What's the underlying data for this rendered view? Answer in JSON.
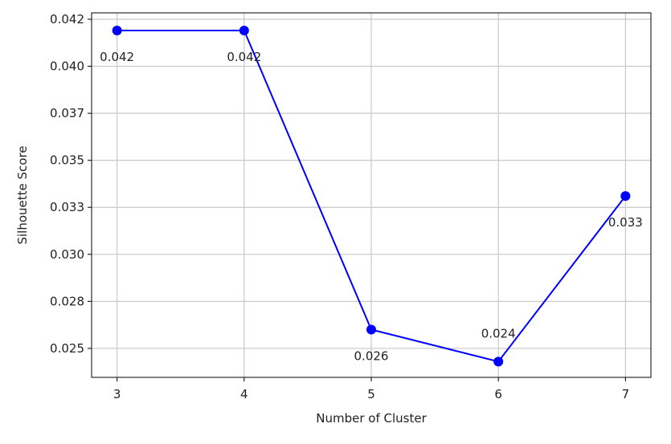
{
  "chart_data": {
    "type": "line",
    "title": "",
    "xlabel": "Number of Cluster",
    "ylabel": "Silhouette Score",
    "x": [
      3,
      4,
      5,
      6,
      7
    ],
    "values": [
      0.0419,
      0.0419,
      0.026,
      0.0243,
      0.0331
    ],
    "data_labels": [
      "0.042",
      "0.042",
      "0.026",
      "0.024",
      "0.033"
    ],
    "x_ticks": [
      3,
      4,
      5,
      6,
      7
    ],
    "x_tick_labels": [
      "3",
      "4",
      "5",
      "6",
      "7"
    ],
    "y_ticks": [
      0.025,
      0.0275,
      0.03,
      0.0325,
      0.035,
      0.0375,
      0.04,
      0.0425
    ],
    "y_tick_labels": [
      "0.025",
      "0.028",
      "0.030",
      "0.033",
      "0.035",
      "0.037",
      "0.040",
      "0.042"
    ],
    "xlim": [
      2.8,
      7.2
    ],
    "ylim": [
      0.02346,
      0.04284
    ],
    "grid": true,
    "line_color": "#0000ff",
    "marker": "circle"
  }
}
